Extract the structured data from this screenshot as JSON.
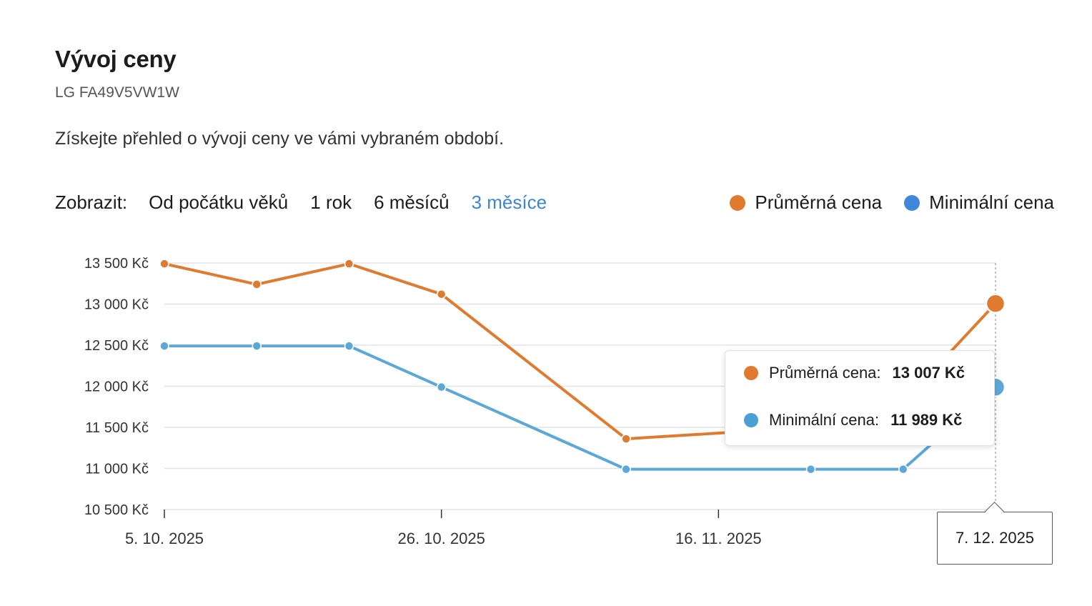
{
  "header": {
    "title": "Vývoj ceny",
    "subtitle": "LG FA49V5VW1W",
    "description": "Získejte přehled o vývoji ceny ve vámi vybraném období."
  },
  "filters": {
    "label": "Zobrazit:",
    "options": [
      "Od počátku věků",
      "1 rok",
      "6 měsíců",
      "3 měsíce"
    ],
    "active_index": 3
  },
  "legend": [
    {
      "label": "Průměrná cena",
      "color": "#e07a2e"
    },
    {
      "label": "Minimální cena",
      "color": "#3f87db"
    }
  ],
  "tooltip": {
    "rows": [
      {
        "label": "Průměrná cena:",
        "value": "13 007 Kč",
        "color": "#e07a2e"
      },
      {
        "label": "Minimální cena:",
        "value": "11 989 Kč",
        "color": "#4a9fd6"
      }
    ],
    "date": "7. 12. 2025"
  },
  "chart_data": {
    "type": "line",
    "x": [
      "2025-10-05",
      "2025-10-12",
      "2025-10-19",
      "2025-10-26",
      "2025-11-09",
      "2025-11-23",
      "2025-11-30",
      "2025-12-07"
    ],
    "x_tick_labels": [
      "5. 10. 2025",
      "26. 10. 2025",
      "16. 11. 2025"
    ],
    "x_tick_dates": [
      "2025-10-05",
      "2025-10-26",
      "2025-11-16"
    ],
    "series": [
      {
        "name": "Průměrná cena",
        "color": "#e07a2e",
        "values": [
          13490,
          13240,
          13490,
          13120,
          11360,
          11500,
          11800,
          13007
        ]
      },
      {
        "name": "Minimální cena",
        "color": "#5ba8d8",
        "values": [
          12490,
          12490,
          12490,
          11990,
          10990,
          10990,
          10990,
          11989
        ]
      }
    ],
    "y_ticks": [
      10500,
      11000,
      11500,
      12000,
      12500,
      13000,
      13500
    ],
    "y_tick_labels": [
      "10 500 Kč",
      "11 000 Kč",
      "11 500 Kč",
      "12 000 Kč",
      "12 500 Kč",
      "13 000 Kč",
      "13 500 Kč"
    ],
    "ylim": [
      10500,
      13500
    ],
    "grid": true,
    "highlight_index": 7
  }
}
